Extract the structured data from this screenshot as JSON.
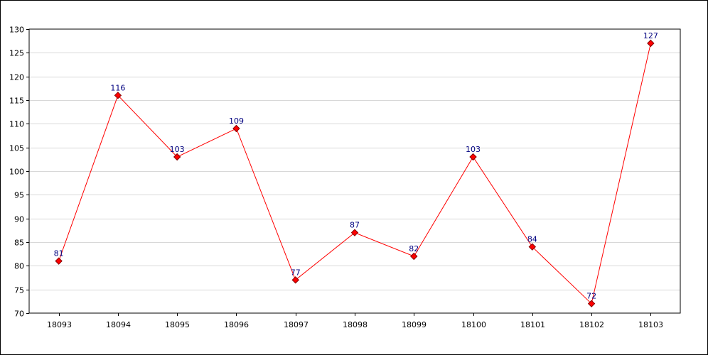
{
  "chart_data": {
    "type": "line",
    "title": "",
    "xlabel": "",
    "ylabel": "",
    "categories": [
      "18093",
      "18094",
      "18095",
      "18096",
      "18097",
      "18098",
      "18099",
      "18100",
      "18101",
      "18102",
      "18103"
    ],
    "values": [
      81,
      116,
      103,
      109,
      77,
      87,
      82,
      103,
      84,
      72,
      127
    ],
    "ylim": [
      70,
      130
    ],
    "yticks": [
      70,
      75,
      80,
      85,
      90,
      95,
      100,
      105,
      110,
      115,
      120,
      125,
      130
    ],
    "grid": "horizontal",
    "legend": "none",
    "data_labels": true,
    "colors": {
      "line": "#ff0000",
      "marker_fill": "#ff0000",
      "marker_stroke": "#800000",
      "data_label": "#000080",
      "grid": "#d8d8d8",
      "axis": "#000000"
    }
  }
}
